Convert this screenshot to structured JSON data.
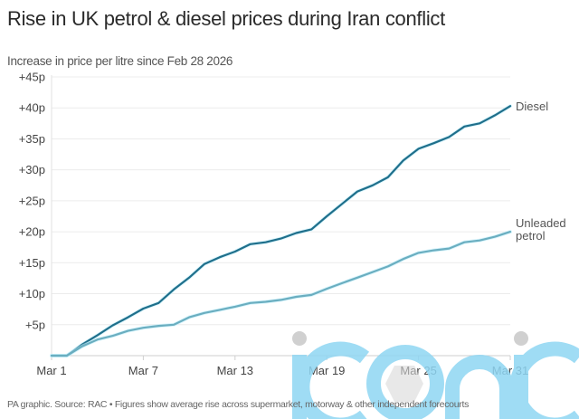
{
  "chart_data": {
    "type": "line",
    "title": "Rise in UK petrol & diesel prices during Iran conflict",
    "subtitle": "Increase in price per litre since Feb 28 2026",
    "xlabel": "",
    "ylabel": "",
    "x_days": [
      1,
      2,
      3,
      4,
      5,
      6,
      7,
      8,
      9,
      10,
      11,
      12,
      13,
      14,
      15,
      16,
      17,
      18,
      19,
      20,
      21,
      22,
      23,
      24,
      25,
      26,
      27,
      28,
      29,
      30,
      31
    ],
    "x_ticks": [
      {
        "day": 1,
        "label": "Mar 1"
      },
      {
        "day": 7,
        "label": "Mar 7"
      },
      {
        "day": 13,
        "label": "Mar 13"
      },
      {
        "day": 19,
        "label": "Mar 19"
      },
      {
        "day": 25,
        "label": "Mar 25"
      },
      {
        "day": 31,
        "label": "Mar 31"
      }
    ],
    "y_ticks": [
      {
        "value": 5,
        "label": "+5p"
      },
      {
        "value": 10,
        "label": "+10p"
      },
      {
        "value": 15,
        "label": "+15p"
      },
      {
        "value": 20,
        "label": "+20p"
      },
      {
        "value": 25,
        "label": "+25p"
      },
      {
        "value": 30,
        "label": "+30p"
      },
      {
        "value": 35,
        "label": "+35p"
      },
      {
        "value": 40,
        "label": "+40p"
      },
      {
        "value": 45,
        "label": "+45p"
      }
    ],
    "ylim": [
      0,
      45
    ],
    "xlim": [
      1,
      31
    ],
    "grid": true,
    "series": [
      {
        "name": "Diesel",
        "label_lines": [
          "Diesel"
        ],
        "color": "#1f6f8b",
        "values": [
          0,
          0,
          1.8,
          3.3,
          4.9,
          6.2,
          7.6,
          8.5,
          10.7,
          12.6,
          14.8,
          15.9,
          16.8,
          18.0,
          18.3,
          18.9,
          19.8,
          20.4,
          22.5,
          24.5,
          26.5,
          27.5,
          28.8,
          31.5,
          33.4,
          34.3,
          35.3,
          37.0,
          37.5,
          38.8,
          40.3
        ]
      },
      {
        "name": "Unleaded petrol",
        "label_lines": [
          "Unleaded",
          "petrol"
        ],
        "color": "#6aaec0",
        "values": [
          0,
          0,
          1.5,
          2.6,
          3.2,
          4.0,
          4.5,
          4.8,
          5.0,
          6.2,
          6.9,
          7.4,
          7.9,
          8.5,
          8.7,
          9.0,
          9.5,
          9.8,
          10.8,
          11.7,
          12.6,
          13.5,
          14.4,
          15.6,
          16.6,
          17.0,
          17.3,
          18.3,
          18.6,
          19.2,
          20.0
        ]
      }
    ],
    "footer": "PA graphic. Source: RAC • Figures show average rise across supermarket, motorway & other independent forecourts"
  },
  "watermark": {
    "text": "iconic",
    "color": "#8fd6f3",
    "dot_color": "#c8c8c8"
  }
}
